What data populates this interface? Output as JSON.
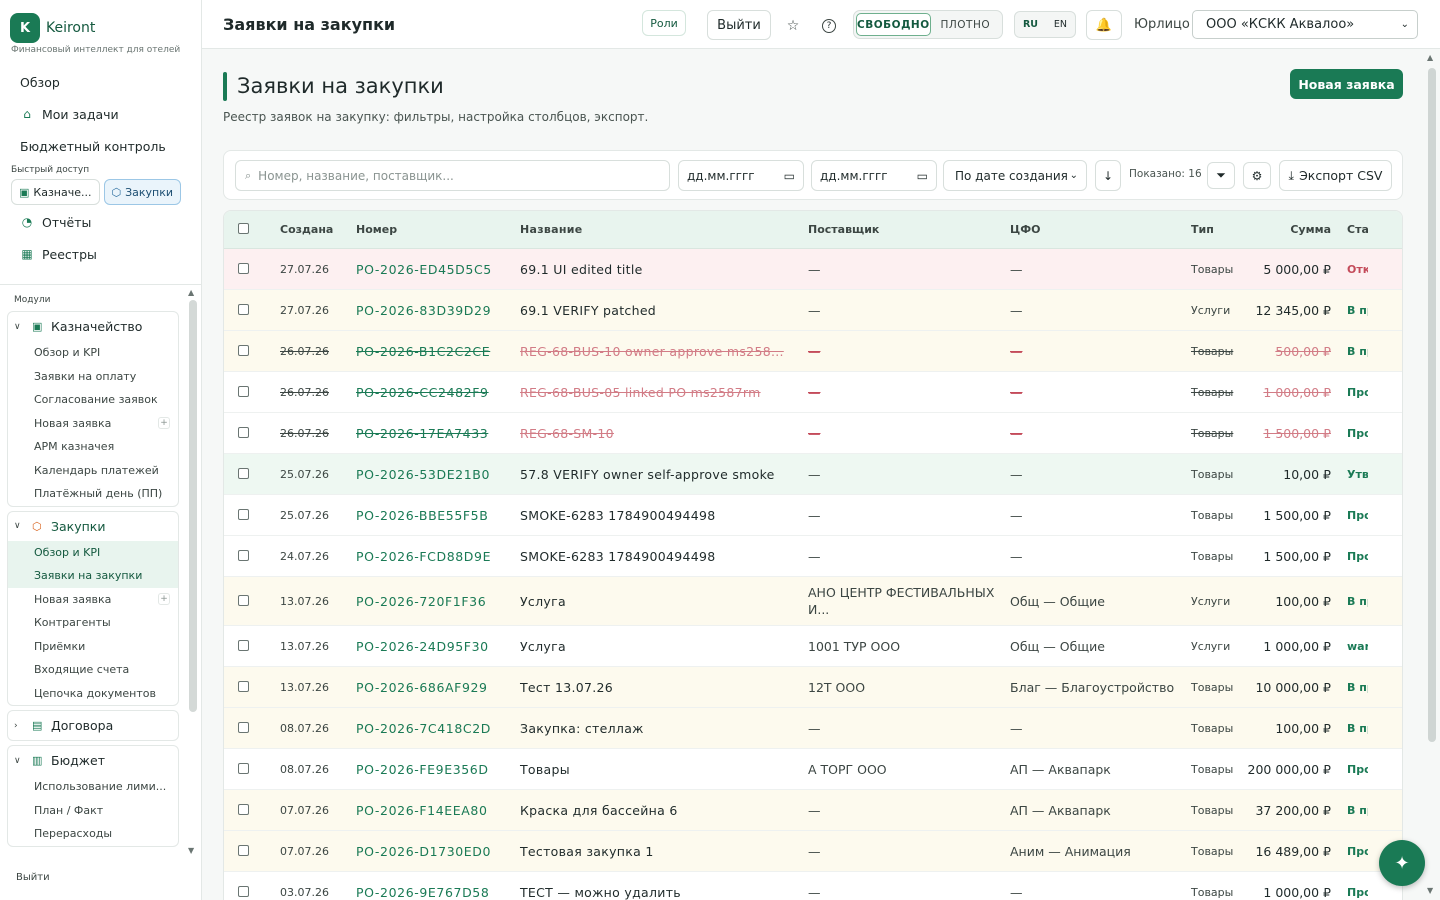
{
  "brand": {
    "logo_letter": "K",
    "name": "Keiront",
    "tagline": "Финансовый интеллект для отелей"
  },
  "nav_top": [
    {
      "label": "Обзор",
      "icon": ""
    },
    {
      "label": "Мои задачи",
      "icon": "inbox-icon"
    },
    {
      "label": "Бюджетный контроль",
      "icon": ""
    }
  ],
  "quick_access": {
    "label": "Быстрый доступ",
    "items": [
      {
        "label": "Казначе...",
        "icon": "wallet-icon"
      },
      {
        "label": "Закупки",
        "icon": "box-icon",
        "active": true
      }
    ]
  },
  "nav_bottom": [
    {
      "label": "Отчёты",
      "icon": "chart-icon"
    },
    {
      "label": "Реестры",
      "icon": "table-icon"
    }
  ],
  "modules": {
    "label": "Модули",
    "groups": [
      {
        "title": "Казначейство",
        "icon": "wallet-icon",
        "items": [
          "Обзор и KPI",
          "Заявки на оплату",
          "Согласование заявок",
          "Новая заявка",
          "АРМ казначея",
          "Календарь платежей",
          "Платёжный день (ПП)"
        ]
      },
      {
        "title": "Закупки",
        "icon": "box-icon",
        "items": [
          "Обзор и KPI",
          "Заявки на закупки",
          "Новая заявка",
          "Контрагенты",
          "Приёмки",
          "Входящие счета",
          "Цепочка документов"
        ]
      },
      {
        "title": "Договора",
        "icon": "document-icon",
        "items": []
      },
      {
        "title": "Бюджет",
        "icon": "bar-chart-icon",
        "items": [
          "Использование лими...",
          "План / Факт",
          "Перерасходы"
        ]
      }
    ]
  },
  "sidebar_logout": "Выйти",
  "header": {
    "title": "Заявки на закупки",
    "roles": "Роли",
    "logout": "Выйти",
    "density": [
      "СВОБОДНО",
      "ПЛОТНО"
    ],
    "lang": [
      "RU",
      "EN"
    ],
    "entity_label": "Юрлицо",
    "entity_value": "ООО «КСКК Аквалоо»"
  },
  "page": {
    "title": "Заявки на закупки",
    "subtitle": "Реестр заявок на закупку: фильтры, настройка столбцов, экспорт.",
    "new_button": "Новая заявка"
  },
  "toolbar": {
    "search_placeholder": "Номер, название, поставщик...",
    "date_from": "дд.мм.гггг",
    "date_to": "дд.мм.гггг",
    "sort": "По дате создания",
    "shown": "Показано: 16",
    "export": "Экспорт CSV"
  },
  "table": {
    "columns": [
      "Создана",
      "Номер",
      "Название",
      "Поставщик",
      "ЦФО",
      "Тип",
      "Сумма",
      "Стату"
    ],
    "rows": [
      {
        "date": "27.07.26",
        "num": "PO-2026-ED45D5C5",
        "name": "69.1 UI edited title",
        "sup": "—",
        "cfo": "—",
        "type": "Товары",
        "sum": "5 000,00 ₽",
        "status": "Откл",
        "bg": "pink",
        "st": "red"
      },
      {
        "date": "27.07.26",
        "num": "PO-2026-83D39D29",
        "name": "69.1 VERIFY patched",
        "sup": "—",
        "cfo": "—",
        "type": "Услуги",
        "sum": "12 345,00 ₽",
        "status": "В пр",
        "bg": "yellow"
      },
      {
        "date": "26.07.26",
        "num": "PO-2026-B1C2C2CE",
        "name": "REG-68-BUS-10 owner approve ms258...",
        "sup": "—",
        "cfo": "—",
        "type": "Товары",
        "sum": "500,00 ₽",
        "status": "В пр",
        "bg": "yellow",
        "strike": true
      },
      {
        "date": "26.07.26",
        "num": "PO-2026-CC2482F9",
        "name": "REG-68-BUS-05 linked PO ms2587rm",
        "sup": "—",
        "cfo": "—",
        "type": "Товары",
        "sum": "1 000,00 ₽",
        "status": "Про",
        "bg": "",
        "strike": true
      },
      {
        "date": "26.07.26",
        "num": "PO-2026-17EA7433",
        "name": "REG-68-SM-10",
        "sup": "—",
        "cfo": "—",
        "type": "Товары",
        "sum": "1 500,00 ₽",
        "status": "Про",
        "bg": "",
        "strike": true
      },
      {
        "date": "25.07.26",
        "num": "PO-2026-53DE21B0",
        "name": "57.8 VERIFY owner self-approve smoke",
        "sup": "—",
        "cfo": "—",
        "type": "Товары",
        "sum": "10,00 ₽",
        "status": "Утве",
        "bg": "green"
      },
      {
        "date": "25.07.26",
        "num": "PO-2026-BBE55F5B",
        "name": "SMOKE-6283 1784900494498",
        "sup": "—",
        "cfo": "—",
        "type": "Товары",
        "sum": "1 500,00 ₽",
        "status": "Про",
        "bg": ""
      },
      {
        "date": "24.07.26",
        "num": "PO-2026-FCD88D9E",
        "name": "SMOKE-6283 1784900494498",
        "sup": "—",
        "cfo": "—",
        "type": "Товары",
        "sum": "1 500,00 ₽",
        "status": "Про",
        "bg": ""
      },
      {
        "date": "13.07.26",
        "num": "PO-2026-720F1F36",
        "name": "Услуга",
        "sup": "АНО ЦЕНТР ФЕСТИВАЛЬНЫХ И...",
        "cfo": "Общ — Общие",
        "type": "Услуги",
        "sum": "100,00 ₽",
        "status": "В пр",
        "bg": "yellow",
        "tall": true
      },
      {
        "date": "13.07.26",
        "num": "PO-2026-24D95F30",
        "name": "Услуга",
        "sup": "1001 ТУР ООО",
        "cfo": "Общ — Общие",
        "type": "Услуги",
        "sum": "1 000,00 ₽",
        "status": "ware",
        "bg": ""
      },
      {
        "date": "13.07.26",
        "num": "PO-2026-686AF929",
        "name": "Тест 13.07.26",
        "sup": "12Т ООО",
        "cfo": "Благ — Благоустройство",
        "type": "Товары",
        "sum": "10 000,00 ₽",
        "status": "В пр",
        "bg": "yellow"
      },
      {
        "date": "08.07.26",
        "num": "PO-2026-7C418C2D",
        "name": "Закупка: стеллаж",
        "sup": "—",
        "cfo": "—",
        "type": "Товары",
        "sum": "100,00 ₽",
        "status": "В пр",
        "bg": "yellow"
      },
      {
        "date": "08.07.26",
        "num": "PO-2026-FE9E356D",
        "name": "Товары",
        "sup": "А ТОРГ ООО",
        "cfo": "АП — Аквапарк",
        "type": "Товары",
        "sum": "200 000,00 ₽",
        "status": "Про",
        "bg": ""
      },
      {
        "date": "07.07.26",
        "num": "PO-2026-F14EEA80",
        "name": "Краска для бассейна 6",
        "sup": "—",
        "cfo": "АП — Аквапарк",
        "type": "Товары",
        "sum": "37 200,00 ₽",
        "status": "В пр",
        "bg": "yellow"
      },
      {
        "date": "07.07.26",
        "num": "PO-2026-D1730ED0",
        "name": "Тестовая закупка 1",
        "sup": "—",
        "cfo": "Аним — Анимация",
        "type": "Товары",
        "sum": "16 489,00 ₽",
        "status": "Про",
        "bg": "yellow"
      },
      {
        "date": "03.07.26",
        "num": "PO-2026-9E767D58",
        "name": "ТЕСТ — можно удалить",
        "sup": "—",
        "cfo": "—",
        "type": "Товары",
        "sum": "1 000,00 ₽",
        "status": "Про",
        "bg": ""
      }
    ]
  },
  "colors": {
    "accent": "#1a7a55",
    "reject": "#c44b5a"
  }
}
